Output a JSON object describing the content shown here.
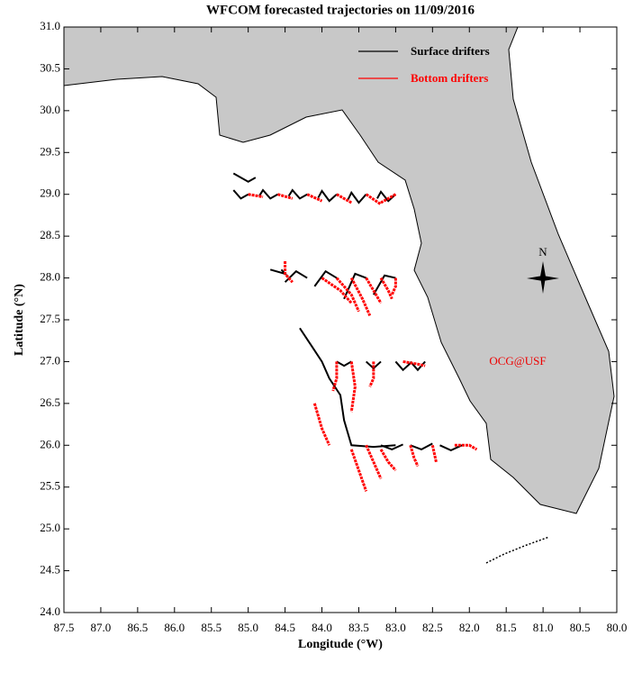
{
  "compass": "N",
  "chart_data": {
    "type": "trajectory",
    "title": "WFCOM forecasted trajectories on 11/09/2016",
    "xlabel": "Longitude (°W)",
    "ylabel": "Latitude (°N)",
    "annotation": "OCG@USF",
    "xlim": [
      87.5,
      80.0
    ],
    "ylim": [
      24.0,
      31.0
    ],
    "xticks": [
      87.5,
      {
        "value": 87,
        "label": "87.0"
      },
      86.5,
      {
        "value": 86,
        "label": "86.0"
      },
      85.5,
      {
        "value": 85,
        "label": "85.0"
      },
      84.5,
      {
        "value": 84,
        "label": "84.0"
      },
      83.5,
      {
        "value": 83,
        "label": "83.0"
      },
      82.5,
      {
        "value": 82,
        "label": "82.0"
      },
      81.5,
      {
        "value": 81,
        "label": "81.0"
      },
      80.5,
      {
        "value": 80,
        "label": "80.0"
      }
    ],
    "yticks": [
      {
        "value": 24,
        "label": "24.0"
      },
      24.5,
      {
        "value": 25,
        "label": "25.0"
      },
      25.5,
      {
        "value": 26,
        "label": "26.0"
      },
      26.5,
      {
        "value": 27,
        "label": "27.0"
      },
      27.5,
      {
        "value": 28,
        "label": "28.0"
      },
      28.5,
      {
        "value": 29,
        "label": "29.0"
      },
      29.5,
      {
        "value": 30,
        "label": "30.0"
      },
      30.5,
      {
        "value": 31,
        "label": "31.0"
      }
    ],
    "series": [
      {
        "name": "Surface drifters",
        "color": "#000000",
        "tracks": [
          {
            "x": [
              85.2,
              85.0,
              84.9
            ],
            "y": [
              29.25,
              29.15,
              29.2
            ]
          },
          {
            "x": [
              85.0,
              85.1,
              85.2
            ],
            "y": [
              29.0,
              28.95,
              29.05
            ]
          },
          {
            "x": [
              84.6,
              84.7,
              84.8,
              84.85
            ],
            "y": [
              29.0,
              28.95,
              29.05,
              28.98
            ]
          },
          {
            "x": [
              84.2,
              84.3,
              84.4,
              84.45
            ],
            "y": [
              29.0,
              28.95,
              29.05,
              28.98
            ]
          },
          {
            "x": [
              83.8,
              83.9,
              84.0,
              84.05
            ],
            "y": [
              29.0,
              28.92,
              29.04,
              28.96
            ]
          },
          {
            "x": [
              83.4,
              83.5,
              83.6,
              83.65
            ],
            "y": [
              29.0,
              28.9,
              29.02,
              28.93
            ]
          },
          {
            "x": [
              83.0,
              83.1,
              83.2,
              83.25
            ],
            "y": [
              29.0,
              28.92,
              29.03,
              28.95
            ]
          },
          {
            "x": [
              84.7,
              84.5,
              84.55
            ],
            "y": [
              28.1,
              28.05,
              28.1
            ]
          },
          {
            "x": [
              84.2,
              84.35,
              84.5
            ],
            "y": [
              28.0,
              28.08,
              27.95
            ]
          },
          {
            "x": [
              83.8,
              83.95,
              84.1
            ],
            "y": [
              28.0,
              28.08,
              27.9
            ]
          },
          {
            "x": [
              83.4,
              83.55,
              83.7
            ],
            "y": [
              28.0,
              28.05,
              27.75
            ]
          },
          {
            "x": [
              83.0,
              83.15,
              83.3
            ],
            "y": [
              28.0,
              28.03,
              27.8
            ]
          },
          {
            "x": [
              84.3,
              84.15,
              84.0,
              83.9,
              83.75,
              83.7,
              83.6,
              83.3,
              83.0
            ],
            "y": [
              27.4,
              27.2,
              27.0,
              26.8,
              26.6,
              26.3,
              26.0,
              25.98,
              26.0
            ]
          },
          {
            "x": [
              83.8,
              83.7,
              83.6
            ],
            "y": [
              27.0,
              26.95,
              27.0
            ]
          },
          {
            "x": [
              83.4,
              83.3,
              83.2
            ],
            "y": [
              27.0,
              26.92,
              27.0
            ]
          },
          {
            "x": [
              83.0,
              82.9,
              82.8
            ],
            "y": [
              27.0,
              26.9,
              26.98
            ]
          },
          {
            "x": [
              82.6,
              82.7,
              82.8
            ],
            "y": [
              27.0,
              26.9,
              27.0
            ]
          },
          {
            "x": [
              82.8,
              82.65,
              82.5
            ],
            "y": [
              26.0,
              25.95,
              26.02
            ]
          },
          {
            "x": [
              82.4,
              82.25,
              82.1
            ],
            "y": [
              26.0,
              25.94,
              26.0
            ]
          },
          {
            "x": [
              83.2,
              83.05,
              82.9
            ],
            "y": [
              26.0,
              25.95,
              26.01
            ]
          }
        ]
      },
      {
        "name": "Bottom drifters",
        "color": "#ff0000",
        "tracks": [
          {
            "x": [
              85.0,
              84.8
            ],
            "y": [
              29.0,
              28.97
            ]
          },
          {
            "x": [
              84.6,
              84.4
            ],
            "y": [
              29.0,
              28.95
            ]
          },
          {
            "x": [
              84.2,
              84.0
            ],
            "y": [
              29.0,
              28.92
            ]
          },
          {
            "x": [
              83.8,
              83.6
            ],
            "y": [
              29.0,
              28.9
            ]
          },
          {
            "x": [
              83.4,
              83.2
            ],
            "y": [
              29.0,
              28.88
            ]
          },
          {
            "x": [
              83.0,
              83.2
            ],
            "y": [
              29.0,
              28.9
            ]
          },
          {
            "x": [
              84.5,
              84.5,
              84.4
            ],
            "y": [
              28.2,
              28.05,
              27.95
            ]
          },
          {
            "x": [
              84.0,
              83.75,
              83.6
            ],
            "y": [
              28.0,
              27.85,
              27.7
            ]
          },
          {
            "x": [
              83.8,
              83.6,
              83.5
            ],
            "y": [
              28.0,
              27.8,
              27.6
            ]
          },
          {
            "x": [
              83.6,
              83.45,
              83.35
            ],
            "y": [
              28.0,
              27.75,
              27.55
            ]
          },
          {
            "x": [
              83.4,
              83.3,
              83.2
            ],
            "y": [
              28.0,
              27.85,
              27.7
            ]
          },
          {
            "x": [
              83.2,
              83.1,
              83.05
            ],
            "y": [
              28.0,
              27.85,
              27.75
            ]
          },
          {
            "x": [
              83.0,
              83.0,
              83.05
            ],
            "y": [
              28.0,
              27.9,
              27.8
            ]
          },
          {
            "x": [
              83.8,
              83.8,
              83.85
            ],
            "y": [
              27.0,
              26.8,
              26.65
            ]
          },
          {
            "x": [
              83.6,
              83.55,
              83.6
            ],
            "y": [
              27.0,
              26.7,
              26.4
            ]
          },
          {
            "x": [
              83.3,
              83.3,
              83.35
            ],
            "y": [
              27.0,
              26.8,
              26.7
            ]
          },
          {
            "x": [
              82.9,
              82.7,
              82.6
            ],
            "y": [
              27.0,
              26.97,
              26.95
            ]
          },
          {
            "x": [
              84.1,
              84.0,
              83.9
            ],
            "y": [
              26.5,
              26.2,
              26.0
            ]
          },
          {
            "x": [
              83.6,
              83.5,
              83.4
            ],
            "y": [
              25.95,
              25.7,
              25.45
            ]
          },
          {
            "x": [
              83.4,
              83.3,
              83.2
            ],
            "y": [
              26.0,
              25.8,
              25.6
            ]
          },
          {
            "x": [
              83.2,
              83.1,
              83.0
            ],
            "y": [
              25.95,
              25.8,
              25.7
            ]
          },
          {
            "x": [
              82.8,
              82.75,
              82.7
            ],
            "y": [
              26.0,
              25.85,
              25.75
            ]
          },
          {
            "x": [
              82.5,
              82.45
            ],
            "y": [
              26.0,
              25.8
            ]
          },
          {
            "x": [
              82.2,
              82.0,
              81.9
            ],
            "y": [
              26.0,
              26.0,
              25.95
            ]
          }
        ]
      }
    ],
    "legend": "upper right"
  }
}
